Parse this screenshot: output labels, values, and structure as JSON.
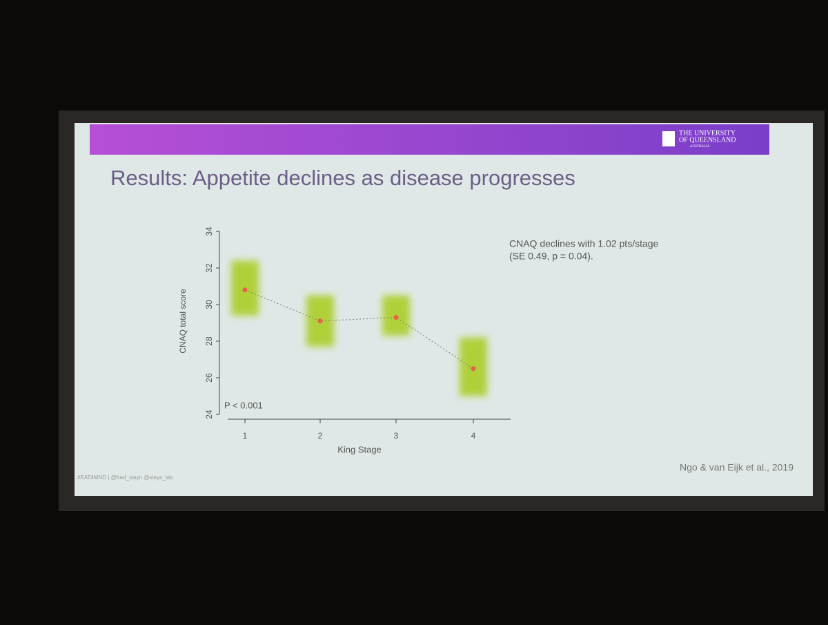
{
  "slide": {
    "title": "Results: Appetite declines as disease progresses",
    "logo": [
      "THE UNIVERSITY",
      "OF QUEENSLAND",
      "AUSTRALIA"
    ],
    "note": [
      "CNAQ declines with 1.02 pts/stage",
      "(SE 0.49, p = 0.04)."
    ],
    "footer": "#EAT4MND | @fred_steyn @steyn_lab",
    "citation": "Ngo & van Eijk et al., 2019"
  },
  "chart_data": {
    "type": "jitter",
    "categories": [
      "1",
      "2",
      "3",
      "4"
    ],
    "values": [
      30.8,
      29.1,
      29.3,
      26.5
    ],
    "low": [
      29.4,
      27.7,
      28.3,
      25.0
    ],
    "high": [
      32.4,
      30.5,
      30.5,
      28.2
    ],
    "color": "#a8cc1c",
    "mean_color": "#e8604a",
    "xlabel": "King Stage",
    "ylabel": "CNAQ total score",
    "annotation": "P < 0.001",
    "ylim": [
      24,
      34
    ],
    "yticks": [
      24,
      26,
      28,
      30,
      32,
      34
    ]
  }
}
